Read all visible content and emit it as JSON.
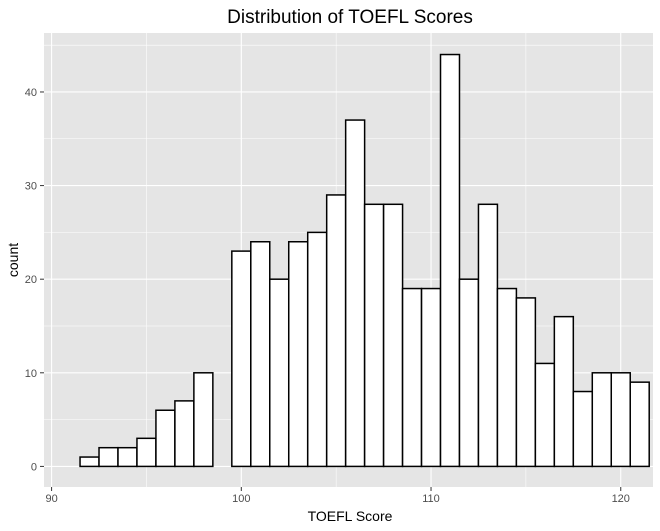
{
  "chart_data": {
    "type": "bar",
    "title": "Distribution of TOEFL Scores",
    "xlabel": "TOEFL Score",
    "ylabel": "count",
    "xlim": [
      89.6,
      121.7
    ],
    "ylim": [
      -2.2,
      46.3
    ],
    "x_ticks": [
      90,
      100,
      110,
      120
    ],
    "y_ticks": [
      0,
      10,
      20,
      30,
      40
    ],
    "grid": true,
    "legend": "none",
    "bin_width": 1,
    "bin_centers": [
      92,
      93,
      94,
      95,
      96,
      97,
      98,
      99,
      100,
      101,
      102,
      103,
      104,
      105,
      106,
      107,
      108,
      109,
      110,
      111,
      112,
      113,
      114,
      115,
      116,
      117,
      118,
      119,
      120,
      121
    ],
    "counts": [
      1,
      2,
      2,
      3,
      6,
      7,
      10,
      0,
      23,
      24,
      20,
      24,
      25,
      29,
      37,
      28,
      28,
      19,
      19,
      44,
      20,
      28,
      19,
      18,
      11,
      16,
      8,
      10,
      10,
      9
    ],
    "colors": {
      "panel_background": "#e5e5e5",
      "grid": "#ffffff",
      "bar_fill": "#ffffff",
      "bar_outline": "#000000",
      "tick_label": "#4d4d4d"
    }
  }
}
